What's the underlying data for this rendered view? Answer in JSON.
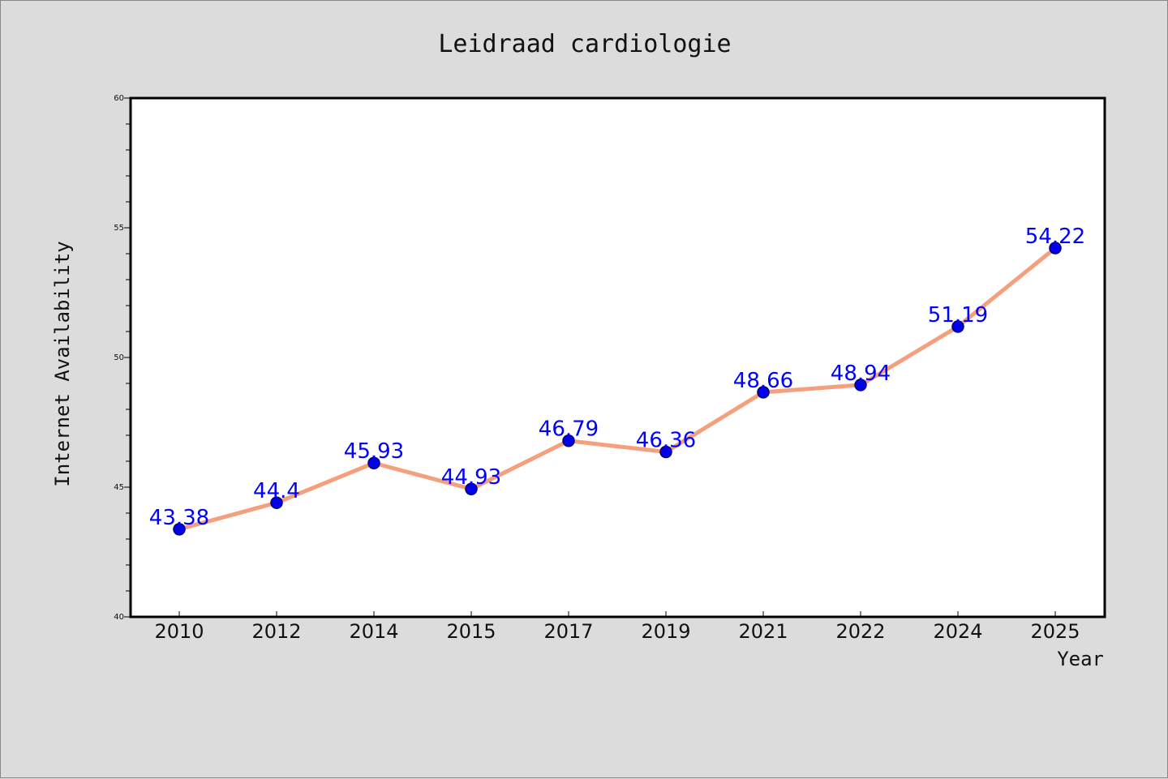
{
  "chart_data": {
    "type": "line",
    "title": "Leidraad cardiologie",
    "xlabel": "Year",
    "ylabel": "Internet Availability",
    "categories": [
      "2010",
      "2012",
      "2014",
      "2015",
      "2017",
      "2019",
      "2021",
      "2022",
      "2024",
      "2025"
    ],
    "series": [
      {
        "values": [
          43.38,
          44.4,
          45.93,
          44.93,
          46.79,
          46.36,
          48.66,
          48.94,
          51.19,
          54.22
        ],
        "labels": [
          "43.38",
          "44.4",
          "45.93",
          "44.93",
          "46.79",
          "46.36",
          "48.66",
          "48.94",
          "51.19",
          "54.22"
        ]
      }
    ],
    "ylim": [
      40,
      60
    ],
    "yticks": [
      "40",
      "45",
      "50",
      "55",
      "60"
    ],
    "grid": false,
    "colors": {
      "line": "#f4a07e",
      "marker_fill": "#0000ee",
      "marker_edge": "#00006e",
      "data_label": "#0000ff",
      "plot_background": "#ffffff",
      "figure_background": "#dcdcdc"
    }
  }
}
